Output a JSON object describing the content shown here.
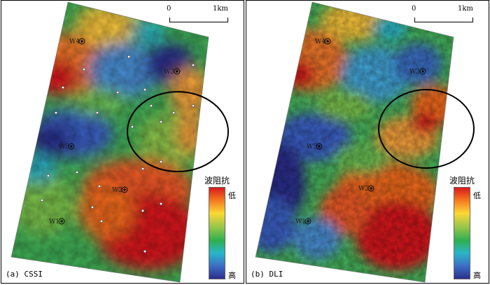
{
  "panels": [
    {
      "label": "(a) CSSI",
      "scale": {
        "start": "0",
        "end": "1km"
      },
      "legend": {
        "title": "波阻抗",
        "low": "低",
        "high": "高"
      },
      "wells": [
        {
          "name": "W4"
        },
        {
          "name": "W3"
        },
        {
          "name": "W5"
        },
        {
          "name": "W2"
        },
        {
          "name": "W1"
        }
      ]
    },
    {
      "label": "(b) DLI",
      "scale": {
        "start": "0",
        "end": "1km"
      },
      "legend": {
        "title": "波阻抗",
        "low": "低",
        "high": "高"
      },
      "wells": [
        {
          "name": "W4"
        },
        {
          "name": "W3"
        },
        {
          "name": "W5"
        },
        {
          "name": "W2"
        },
        {
          "name": "W1"
        }
      ]
    }
  ],
  "colors": {
    "low_impedance": "#d7191c",
    "mid_impedance": "#2eaf4f",
    "high_impedance": "#2b2f8c"
  }
}
